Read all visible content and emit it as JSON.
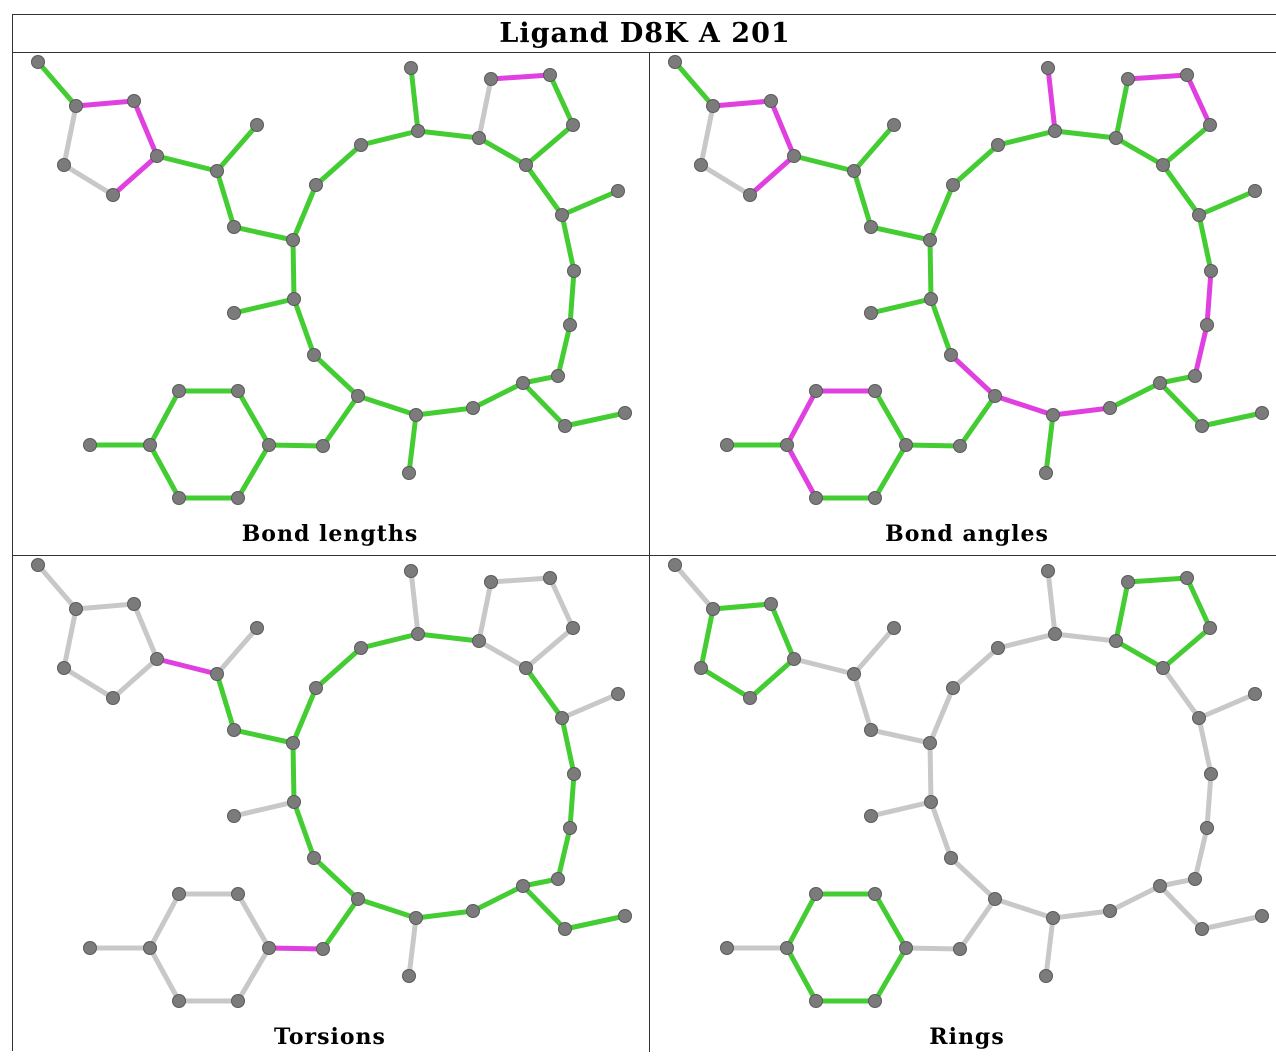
{
  "title": "Ligand D8K A 201",
  "colors": {
    "ok": "#44cc33",
    "outlier": "#e040e0",
    "neutral": "#c8c8c8",
    "atom": "#7b7b7b",
    "border": "#333333"
  },
  "panels": [
    {
      "caption": "Bond lengths",
      "outlier_bonds": [
        [
          1,
          2
        ],
        [
          2,
          3
        ],
        [
          3,
          4
        ],
        [
          16,
          17
        ]
      ],
      "neutral_bonds": [
        [
          4,
          5
        ],
        [
          5,
          1
        ],
        [
          15,
          16
        ]
      ],
      "mode": "bonds"
    },
    {
      "caption": "Bond angles",
      "outlier_bonds": [
        [
          1,
          2
        ],
        [
          2,
          3
        ],
        [
          3,
          4
        ],
        [
          16,
          17
        ],
        [
          17,
          18
        ],
        [
          17,
          22
        ],
        [
          22,
          23
        ],
        [
          23,
          24
        ],
        [
          13,
          14
        ],
        [
          13,
          28
        ],
        [
          28,
          29
        ],
        [
          28,
          30
        ],
        [
          29,
          31
        ],
        [
          31,
          32
        ],
        [
          31,
          33
        ],
        [
          31,
          35
        ],
        [
          35,
          36
        ],
        [
          36,
          38
        ],
        [
          38,
          39
        ],
        [
          39,
          40
        ],
        [
          40,
          41
        ]
      ],
      "neutral_bonds": [
        [
          4,
          5
        ],
        [
          5,
          1
        ]
      ],
      "mode": "angles"
    },
    {
      "caption": "Torsions",
      "outlier_bonds": [
        [
          3,
          6
        ],
        [
          36,
          37
        ]
      ],
      "mode": "torsions"
    },
    {
      "caption": "Rings",
      "mode": "rings"
    }
  ]
}
